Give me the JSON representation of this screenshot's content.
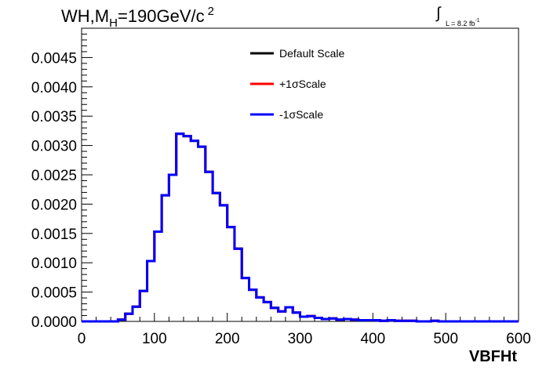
{
  "title": {
    "main": "WH,M",
    "sub": "H",
    "rest": "=190GeV/c",
    "sup": "2"
  },
  "lumi": {
    "text": "L = 8.2 fb",
    "sup": "-1"
  },
  "chart_data": {
    "type": "line",
    "xlabel": "VBFHt",
    "ylabel": "",
    "xlim": [
      0,
      600
    ],
    "ylim": [
      0,
      0.005
    ],
    "x_ticks": [
      "0",
      "100",
      "200",
      "300",
      "400",
      "500",
      "600"
    ],
    "y_ticks": [
      "0.0000",
      "0.0005",
      "0.0010",
      "0.0015",
      "0.0020",
      "0.0025",
      "0.0030",
      "0.0035",
      "0.0040",
      "0.0045"
    ],
    "bin_width": 10,
    "x": [
      0,
      10,
      20,
      30,
      40,
      50,
      60,
      70,
      80,
      90,
      100,
      110,
      120,
      130,
      140,
      150,
      160,
      170,
      180,
      190,
      200,
      210,
      220,
      230,
      240,
      250,
      260,
      270,
      280,
      290,
      300,
      310,
      320,
      330,
      340,
      350,
      360,
      370,
      380,
      390,
      400,
      410,
      420,
      430,
      440,
      450,
      460,
      470,
      480,
      490,
      500,
      510,
      520,
      530,
      540,
      550,
      560,
      570,
      580,
      590
    ],
    "series": [
      {
        "name": "Default Scale",
        "color": "#000000",
        "values": [
          0,
          0,
          0,
          0,
          0,
          3e-05,
          0.00013,
          0.00025,
          0.00052,
          0.00103,
          0.00153,
          0.00215,
          0.0025,
          0.0032,
          0.00316,
          0.00308,
          0.00298,
          0.00255,
          0.00219,
          0.00198,
          0.00161,
          0.00124,
          0.00074,
          0.00054,
          0.00041,
          0.00033,
          0.00023,
          0.00017,
          0.00024,
          0.00015,
          8e-05,
          9e-05,
          6e-05,
          4e-05,
          5e-05,
          3e-05,
          4e-05,
          3e-05,
          2e-05,
          2e-05,
          2e-05,
          1e-05,
          2e-05,
          1e-05,
          1e-05,
          1e-05,
          0,
          0,
          1e-05,
          0,
          0,
          0,
          0,
          0,
          0,
          0,
          0,
          0,
          0,
          0
        ]
      },
      {
        "name": "+1σScale",
        "color": "#ff0000",
        "values": [
          0,
          0,
          0,
          0,
          0,
          3e-05,
          0.00013,
          0.00025,
          0.00052,
          0.00103,
          0.00153,
          0.00215,
          0.0025,
          0.0032,
          0.00316,
          0.00308,
          0.00298,
          0.00255,
          0.00219,
          0.00198,
          0.00161,
          0.00124,
          0.00074,
          0.00054,
          0.00041,
          0.00033,
          0.00023,
          0.00017,
          0.00024,
          0.00015,
          8e-05,
          9e-05,
          6e-05,
          4e-05,
          5e-05,
          3e-05,
          4e-05,
          3e-05,
          2e-05,
          2e-05,
          2e-05,
          1e-05,
          2e-05,
          1e-05,
          1e-05,
          1e-05,
          0,
          0,
          1e-05,
          0,
          0,
          0,
          0,
          0,
          0,
          0,
          0,
          0,
          0,
          0
        ]
      },
      {
        "name": "-1σScale",
        "color": "#0000ff",
        "values": [
          0,
          0,
          0,
          0,
          0,
          3e-05,
          0.00013,
          0.00025,
          0.00052,
          0.00103,
          0.00153,
          0.00215,
          0.0025,
          0.0032,
          0.00316,
          0.00308,
          0.00298,
          0.00255,
          0.00219,
          0.00198,
          0.00161,
          0.00124,
          0.00074,
          0.00054,
          0.00041,
          0.00033,
          0.00023,
          0.00017,
          0.00024,
          0.00015,
          8e-05,
          9e-05,
          6e-05,
          4e-05,
          5e-05,
          3e-05,
          4e-05,
          3e-05,
          2e-05,
          2e-05,
          2e-05,
          1e-05,
          2e-05,
          1e-05,
          1e-05,
          1e-05,
          0,
          0,
          1e-05,
          0,
          0,
          0,
          0,
          0,
          0,
          0,
          0,
          0,
          0,
          0
        ]
      }
    ],
    "legend_position": "top-right"
  }
}
